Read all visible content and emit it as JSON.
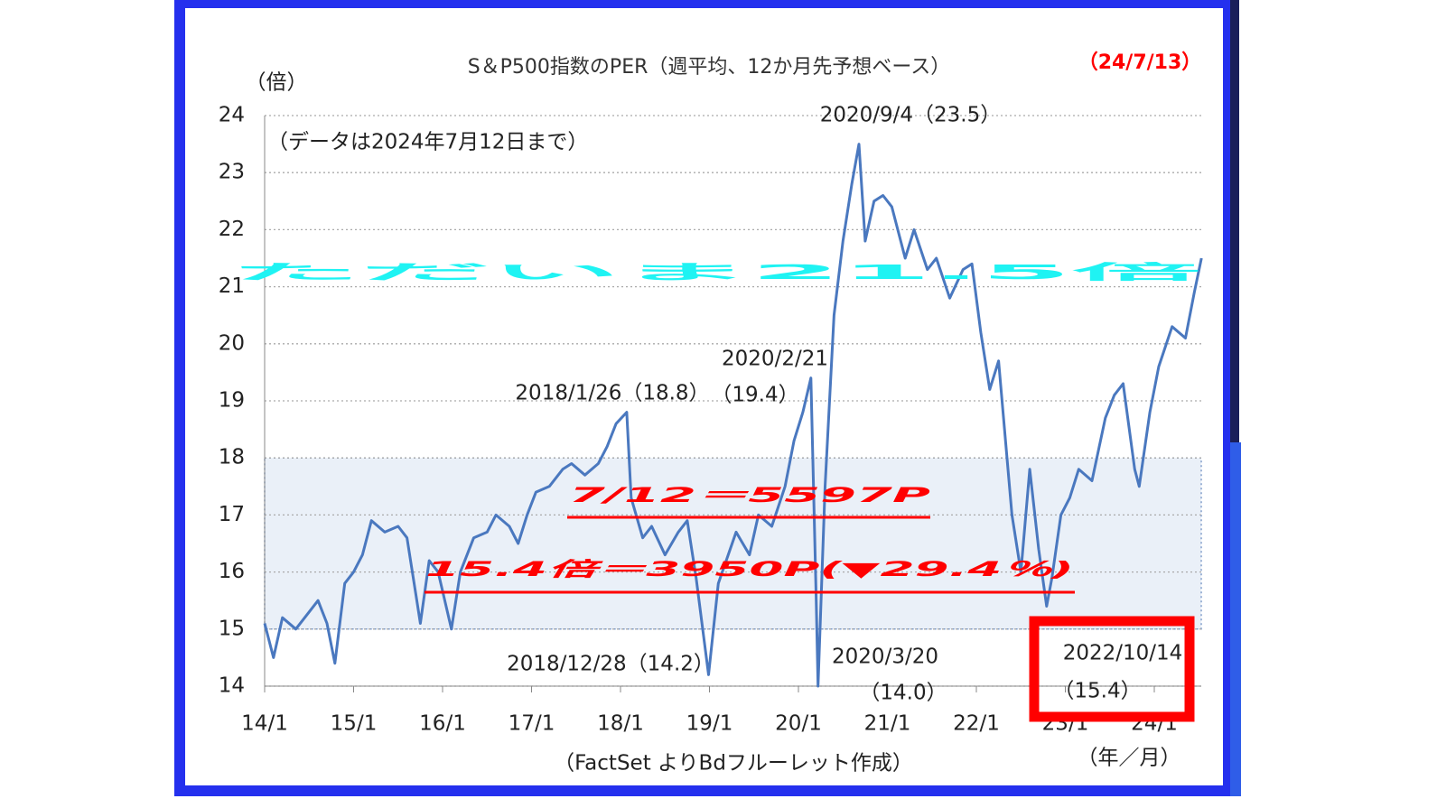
{
  "chart_data": {
    "type": "line",
    "title": "S＆P500指数のPER（週平均、12か月先予想ベース）",
    "date_label": "（24/7/13）",
    "y_unit": "（倍）",
    "x_unit": "（年／月）",
    "note": "（データは2024年7月12日まで）",
    "source": "（FactSet よりBdフルーレット作成）",
    "annotations": [
      "2020/9/4（23.5）",
      "2020/2/21",
      "（19.4）",
      "2018/1/26（18.8）",
      "2018/12/28（14.2）",
      "2020/3/20",
      "（14.0）",
      "2022/10/14",
      "（15.4）"
    ],
    "headline": "ただいま21.5倍",
    "callouts": [
      "7/12＝5597P",
      "15.4倍＝3950P(▼29.4％)"
    ],
    "band": [
      15,
      18
    ],
    "color": "#4a78bf",
    "grid": true,
    "xlim": [
      2014,
      2024.55
    ],
    "ylim": [
      14,
      24
    ],
    "yticks": [
      14,
      15,
      16,
      17,
      18,
      19,
      20,
      21,
      22,
      23,
      24
    ],
    "xticks": [
      {
        "value": 2014,
        "label": "14/1"
      },
      {
        "value": 2015,
        "label": "15/1"
      },
      {
        "value": 2016,
        "label": "16/1"
      },
      {
        "value": 2017,
        "label": "17/1"
      },
      {
        "value": 2018,
        "label": "18/1"
      },
      {
        "value": 2019,
        "label": "19/1"
      },
      {
        "value": 2020,
        "label": "20/1"
      },
      {
        "value": 2021,
        "label": "21/1"
      },
      {
        "value": 2022,
        "label": "22/1"
      },
      {
        "value": 2023,
        "label": "23/1"
      },
      {
        "value": 2024,
        "label": "24/1"
      }
    ],
    "x": [
      2014.0,
      2014.1,
      2014.2,
      2014.35,
      2014.5,
      2014.6,
      2014.7,
      2014.79,
      2014.9,
      2015.0,
      2015.1,
      2015.2,
      2015.35,
      2015.5,
      2015.6,
      2015.7,
      2015.75,
      2015.85,
      2015.95,
      2016.1,
      2016.2,
      2016.35,
      2016.5,
      2016.6,
      2016.75,
      2016.85,
      2016.95,
      2017.05,
      2017.2,
      2017.35,
      2017.45,
      2017.6,
      2017.75,
      2017.85,
      2017.95,
      2018.07,
      2018.12,
      2018.25,
      2018.35,
      2018.5,
      2018.65,
      2018.75,
      2018.85,
      2018.99,
      2019.1,
      2019.3,
      2019.45,
      2019.55,
      2019.7,
      2019.85,
      2019.95,
      2020.05,
      2020.14,
      2020.2,
      2020.22,
      2020.3,
      2020.4,
      2020.5,
      2020.6,
      2020.68,
      2020.75,
      2020.85,
      2020.95,
      2021.05,
      2021.2,
      2021.3,
      2021.45,
      2021.55,
      2021.7,
      2021.85,
      2021.95,
      2022.05,
      2022.15,
      2022.25,
      2022.4,
      2022.5,
      2022.6,
      2022.7,
      2022.79,
      2022.85,
      2022.95,
      2023.05,
      2023.15,
      2023.3,
      2023.45,
      2023.55,
      2023.65,
      2023.78,
      2023.83,
      2023.95,
      2024.05,
      2024.2,
      2024.35,
      2024.45,
      2024.53
    ],
    "values": [
      15.1,
      14.5,
      15.2,
      15.0,
      15.3,
      15.5,
      15.1,
      14.4,
      15.8,
      16.0,
      16.3,
      16.9,
      16.7,
      16.8,
      16.6,
      15.6,
      15.1,
      16.2,
      16.0,
      15.0,
      16.0,
      16.6,
      16.7,
      17.0,
      16.8,
      16.5,
      17.0,
      17.4,
      17.5,
      17.8,
      17.9,
      17.7,
      17.9,
      18.2,
      18.6,
      18.8,
      17.3,
      16.6,
      16.8,
      16.3,
      16.7,
      16.9,
      15.9,
      14.2,
      15.8,
      16.7,
      16.3,
      17.0,
      16.8,
      17.5,
      18.3,
      18.8,
      19.4,
      15.5,
      14.0,
      17.5,
      20.5,
      21.8,
      22.8,
      23.5,
      21.8,
      22.5,
      22.6,
      22.4,
      21.5,
      22.0,
      21.3,
      21.5,
      20.8,
      21.3,
      21.4,
      20.2,
      19.2,
      19.7,
      17.0,
      16.0,
      17.8,
      16.4,
      15.4,
      15.9,
      17.0,
      17.3,
      17.8,
      17.6,
      18.7,
      19.1,
      19.3,
      17.8,
      17.5,
      18.8,
      19.6,
      20.3,
      20.1,
      20.9,
      21.5
    ]
  }
}
